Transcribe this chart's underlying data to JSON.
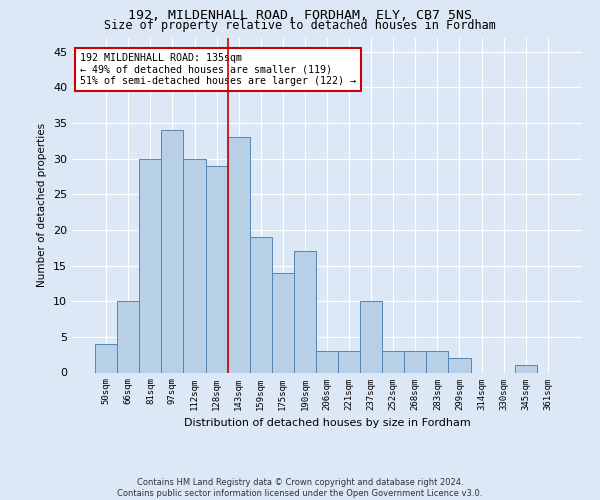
{
  "title1": "192, MILDENHALL ROAD, FORDHAM, ELY, CB7 5NS",
  "title2": "Size of property relative to detached houses in Fordham",
  "xlabel": "Distribution of detached houses by size in Fordham",
  "ylabel": "Number of detached properties",
  "categories": [
    "50sqm",
    "66sqm",
    "81sqm",
    "97sqm",
    "112sqm",
    "128sqm",
    "143sqm",
    "159sqm",
    "175sqm",
    "190sqm",
    "206sqm",
    "221sqm",
    "237sqm",
    "252sqm",
    "268sqm",
    "283sqm",
    "299sqm",
    "314sqm",
    "330sqm",
    "345sqm",
    "361sqm"
  ],
  "values": [
    4,
    10,
    30,
    34,
    30,
    29,
    33,
    19,
    14,
    17,
    3,
    3,
    10,
    3,
    3,
    3,
    2,
    0,
    0,
    1,
    0
  ],
  "bar_color": "#b8cfe8",
  "bar_edge_color": "#5585b5",
  "vline_x": 6,
  "vline_color": "#cc0000",
  "annotation_title": "192 MILDENHALL ROAD: 135sqm",
  "annotation_line2": "← 49% of detached houses are smaller (119)",
  "annotation_line3": "51% of semi-detached houses are larger (122) →",
  "annotation_box_color": "#ffffff",
  "annotation_box_edge": "#cc0000",
  "ylim": [
    0,
    47
  ],
  "yticks": [
    0,
    5,
    10,
    15,
    20,
    25,
    30,
    35,
    40,
    45
  ],
  "footer1": "Contains HM Land Registry data © Crown copyright and database right 2024.",
  "footer2": "Contains public sector information licensed under the Open Government Licence v3.0.",
  "bg_color": "#dce8f5"
}
